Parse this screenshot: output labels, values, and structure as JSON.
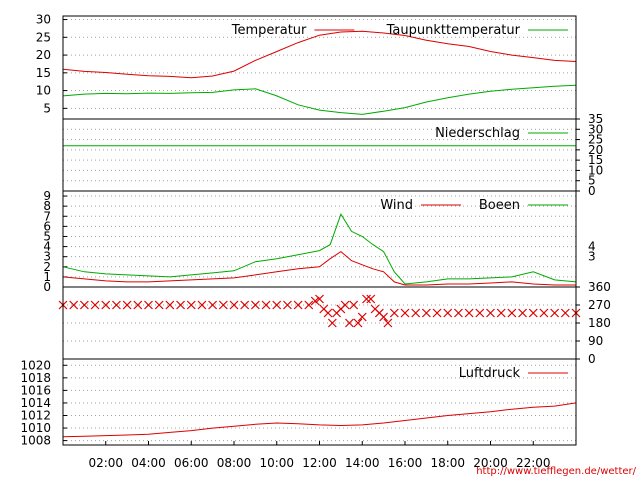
{
  "credit": "http://www.tiefflegen.de/wetter/",
  "chart_data": [
    {
      "type": "line",
      "panel": "temperature",
      "ylim": [
        2,
        31
      ],
      "yticks": [
        5,
        10,
        15,
        20,
        25,
        30
      ],
      "grid": true,
      "legend_placement": "top-right",
      "series": [
        {
          "name": "Temperatur",
          "color": "#dd0000",
          "points": [
            [
              0,
              16.0
            ],
            [
              1,
              15.4
            ],
            [
              2,
              15.1
            ],
            [
              3,
              14.6
            ],
            [
              4,
              14.2
            ],
            [
              5,
              14.0
            ],
            [
              6,
              13.6
            ],
            [
              7,
              14.1
            ],
            [
              8,
              15.5
            ],
            [
              9,
              18.5
            ],
            [
              10,
              21.0
            ],
            [
              11,
              23.5
            ],
            [
              12,
              25.6
            ],
            [
              13,
              26.5
            ],
            [
              14,
              26.7
            ],
            [
              15,
              26.2
            ],
            [
              16,
              25.5
            ],
            [
              17,
              24.2
            ],
            [
              18,
              23.2
            ],
            [
              19,
              22.4
            ],
            [
              20,
              21.0
            ],
            [
              21,
              20.0
            ],
            [
              22,
              19.3
            ],
            [
              23,
              18.5
            ],
            [
              24,
              18.2
            ]
          ]
        },
        {
          "name": "Taupunkttemperatur",
          "color": "#00aa00",
          "points": [
            [
              0,
              8.5
            ],
            [
              1,
              9.0
            ],
            [
              2,
              9.2
            ],
            [
              3,
              9.1
            ],
            [
              4,
              9.3
            ],
            [
              5,
              9.2
            ],
            [
              6,
              9.4
            ],
            [
              7,
              9.5
            ],
            [
              8,
              10.2
            ],
            [
              9,
              10.5
            ],
            [
              10,
              8.5
            ],
            [
              11,
              6.0
            ],
            [
              12,
              4.5
            ],
            [
              13,
              3.8
            ],
            [
              14,
              3.3
            ],
            [
              15,
              4.2
            ],
            [
              16,
              5.2
            ],
            [
              17,
              6.8
            ],
            [
              18,
              8.0
            ],
            [
              19,
              9.0
            ],
            [
              20,
              9.8
            ],
            [
              21,
              10.4
            ],
            [
              22,
              10.8
            ],
            [
              23,
              11.2
            ],
            [
              24,
              11.5
            ]
          ]
        }
      ]
    },
    {
      "type": "line",
      "panel": "precipitation",
      "ylim": [
        0,
        35
      ],
      "yticks": [
        0,
        5,
        10,
        15,
        20,
        25,
        30,
        35
      ],
      "grid": true,
      "legend_placement": "top-right",
      "series": [
        {
          "name": "Niederschlag",
          "color": "#00aa00",
          "points": [
            [
              0,
              22
            ],
            [
              24,
              22
            ]
          ]
        }
      ]
    },
    {
      "type": "line",
      "panel": "wind",
      "ylim": [
        0,
        9.5
      ],
      "yticks": [
        0,
        1,
        2,
        3,
        4,
        5,
        6,
        7,
        8,
        9
      ],
      "yticks_right": [
        3,
        4
      ],
      "grid": true,
      "legend_placement": "top-right",
      "series": [
        {
          "name": "Wind",
          "color": "#dd0000",
          "points": [
            [
              0,
              1.0
            ],
            [
              1,
              0.8
            ],
            [
              2,
              0.6
            ],
            [
              3,
              0.5
            ],
            [
              4,
              0.5
            ],
            [
              5,
              0.6
            ],
            [
              6,
              0.7
            ],
            [
              7,
              0.8
            ],
            [
              8,
              0.9
            ],
            [
              9,
              1.2
            ],
            [
              10,
              1.5
            ],
            [
              11,
              1.8
            ],
            [
              12,
              2.0
            ],
            [
              12.5,
              2.8
            ],
            [
              13,
              3.5
            ],
            [
              13.5,
              2.6
            ],
            [
              14,
              2.2
            ],
            [
              14.5,
              1.8
            ],
            [
              15,
              1.5
            ],
            [
              15.5,
              0.5
            ],
            [
              16,
              0.2
            ],
            [
              17,
              0.2
            ],
            [
              18,
              0.3
            ],
            [
              19,
              0.3
            ],
            [
              20,
              0.4
            ],
            [
              21,
              0.5
            ],
            [
              22,
              0.3
            ],
            [
              23,
              0.2
            ],
            [
              24,
              0.2
            ]
          ]
        },
        {
          "name": "Boeen",
          "color": "#00aa00",
          "points": [
            [
              0,
              2.0
            ],
            [
              1,
              1.5
            ],
            [
              2,
              1.3
            ],
            [
              3,
              1.2
            ],
            [
              4,
              1.1
            ],
            [
              5,
              1.0
            ],
            [
              6,
              1.2
            ],
            [
              7,
              1.4
            ],
            [
              8,
              1.6
            ],
            [
              9,
              2.5
            ],
            [
              10,
              2.8
            ],
            [
              11,
              3.2
            ],
            [
              12,
              3.6
            ],
            [
              12.5,
              4.2
            ],
            [
              13,
              7.2
            ],
            [
              13.5,
              5.5
            ],
            [
              14,
              5.0
            ],
            [
              14.5,
              4.2
            ],
            [
              15,
              3.5
            ],
            [
              15.5,
              1.5
            ],
            [
              16,
              0.3
            ],
            [
              17,
              0.5
            ],
            [
              18,
              0.8
            ],
            [
              19,
              0.8
            ],
            [
              20,
              0.9
            ],
            [
              21,
              1.0
            ],
            [
              22,
              1.5
            ],
            [
              23,
              0.7
            ],
            [
              24,
              0.5
            ]
          ]
        }
      ]
    },
    {
      "type": "scatter",
      "panel": "wind-direction",
      "ylim": [
        0,
        360
      ],
      "yticks": [
        0,
        90,
        180,
        270,
        360
      ],
      "grid": true,
      "series": [
        {
          "name": "",
          "color": "#dd0000",
          "points": [
            [
              0.0,
              270
            ],
            [
              0.5,
              270
            ],
            [
              1.0,
              270
            ],
            [
              1.5,
              270
            ],
            [
              2.0,
              270
            ],
            [
              2.5,
              270
            ],
            [
              3.0,
              270
            ],
            [
              3.5,
              270
            ],
            [
              4.0,
              270
            ],
            [
              4.5,
              270
            ],
            [
              5.0,
              270
            ],
            [
              5.5,
              270
            ],
            [
              6.0,
              270
            ],
            [
              6.5,
              270
            ],
            [
              7.0,
              270
            ],
            [
              7.5,
              270
            ],
            [
              8.0,
              270
            ],
            [
              8.5,
              270
            ],
            [
              9.0,
              270
            ],
            [
              9.5,
              270
            ],
            [
              10.0,
              270
            ],
            [
              10.5,
              270
            ],
            [
              11.0,
              270
            ],
            [
              11.5,
              270
            ],
            [
              11.8,
              290
            ],
            [
              12.0,
              300
            ],
            [
              12.2,
              250
            ],
            [
              12.4,
              230
            ],
            [
              12.6,
              180
            ],
            [
              12.8,
              230
            ],
            [
              13.0,
              250
            ],
            [
              13.2,
              270
            ],
            [
              13.4,
              180
            ],
            [
              13.6,
              270
            ],
            [
              13.8,
              180
            ],
            [
              14.0,
              210
            ],
            [
              14.2,
              300
            ],
            [
              14.4,
              300
            ],
            [
              14.6,
              250
            ],
            [
              14.8,
              230
            ],
            [
              15.0,
              210
            ],
            [
              15.2,
              180
            ],
            [
              15.5,
              230
            ],
            [
              16.0,
              230
            ],
            [
              16.5,
              230
            ],
            [
              17.0,
              230
            ],
            [
              17.5,
              230
            ],
            [
              18.0,
              230
            ],
            [
              18.5,
              230
            ],
            [
              19.0,
              230
            ],
            [
              19.5,
              230
            ],
            [
              20.0,
              230
            ],
            [
              20.5,
              230
            ],
            [
              21.0,
              230
            ],
            [
              21.5,
              230
            ],
            [
              22.0,
              230
            ],
            [
              22.5,
              230
            ],
            [
              23.0,
              230
            ],
            [
              23.5,
              230
            ],
            [
              24.0,
              230
            ]
          ]
        }
      ]
    },
    {
      "type": "line",
      "panel": "pressure",
      "ylim": [
        1007.3,
        1021
      ],
      "yticks": [
        1008,
        1010,
        1012,
        1014,
        1016,
        1018,
        1020
      ],
      "grid": true,
      "legend_placement": "top-right",
      "xlabels": [
        "02:00",
        "04:00",
        "06:00",
        "08:00",
        "10:00",
        "12:00",
        "14:00",
        "16:00",
        "18:00",
        "20:00",
        "22:00"
      ],
      "series": [
        {
          "name": "Luftdruck",
          "color": "#dd0000",
          "points": [
            [
              0,
              1008.6
            ],
            [
              1,
              1008.7
            ],
            [
              2,
              1008.8
            ],
            [
              3,
              1008.9
            ],
            [
              4,
              1009.0
            ],
            [
              5,
              1009.3
            ],
            [
              6,
              1009.6
            ],
            [
              7,
              1010.0
            ],
            [
              8,
              1010.3
            ],
            [
              9,
              1010.6
            ],
            [
              10,
              1010.8
            ],
            [
              11,
              1010.7
            ],
            [
              12,
              1010.5
            ],
            [
              13,
              1010.4
            ],
            [
              14,
              1010.5
            ],
            [
              15,
              1010.8
            ],
            [
              16,
              1011.2
            ],
            [
              17,
              1011.6
            ],
            [
              18,
              1012.0
            ],
            [
              19,
              1012.3
            ],
            [
              20,
              1012.6
            ],
            [
              21,
              1013.0
            ],
            [
              22,
              1013.3
            ],
            [
              23,
              1013.5
            ],
            [
              24,
              1014.0
            ]
          ]
        }
      ]
    }
  ]
}
